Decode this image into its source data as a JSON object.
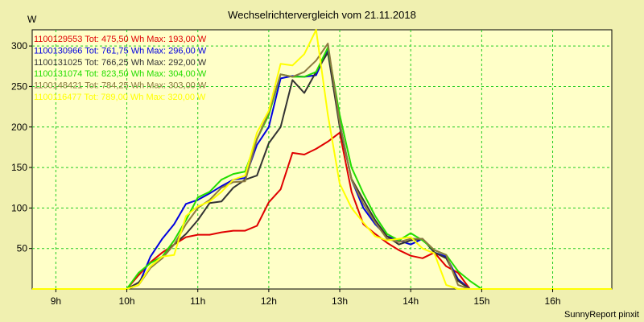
{
  "chart_data": {
    "type": "line",
    "title": "Wechselrichtervergleich vom 21.11.2018",
    "ylabel": "W",
    "xlabel": "",
    "credit": "SunnyReport pinxit",
    "xlim": [
      8.6667,
      16.8333
    ],
    "ylim": [
      0,
      320
    ],
    "xticks": [
      9,
      10,
      11,
      12,
      13,
      14,
      15,
      16
    ],
    "xtick_labels": [
      "9h",
      "10h",
      "11h",
      "12h",
      "13h",
      "14h",
      "15h",
      "16h"
    ],
    "yticks": [
      50,
      100,
      150,
      200,
      250,
      300
    ],
    "ytick_labels": [
      "50",
      "100",
      "150",
      "200",
      "250",
      "300"
    ],
    "grid": true,
    "x": [
      8.6667,
      9.0,
      9.3333,
      9.5,
      9.6667,
      9.8333,
      10.0,
      10.1667,
      10.3333,
      10.5,
      10.6667,
      10.8333,
      11.0,
      11.1667,
      11.3333,
      11.5,
      11.6667,
      11.8333,
      12.0,
      12.1667,
      12.3333,
      12.5,
      12.6667,
      12.8333,
      13.0,
      13.1667,
      13.3333,
      13.5,
      13.6667,
      13.8333,
      14.0,
      14.1667,
      14.3333,
      14.5,
      14.6667,
      14.8333,
      15.0,
      15.1667,
      15.3333,
      15.5,
      15.6667,
      15.8333,
      16.0,
      16.1667,
      16.3333,
      16.5,
      16.6667,
      16.8333
    ],
    "series": [
      {
        "name": "1100129553",
        "legend": "1100129553 Tot: 475,50 Wh Max: 193,00 W",
        "color": "#e00000",
        "values": [
          0,
          0,
          0,
          0,
          0,
          0,
          0,
          17,
          33,
          45,
          55,
          64,
          67,
          67,
          70,
          72,
          72,
          78,
          107,
          123,
          168,
          166,
          173,
          182,
          193,
          120,
          80,
          68,
          57,
          48,
          41,
          38,
          45,
          28,
          20,
          0,
          0,
          0,
          0,
          0,
          0,
          0,
          0,
          0,
          0,
          0,
          0,
          0
        ]
      },
      {
        "name": "1100130966",
        "legend": "1100130966 Tot: 761,75 Wh Max: 296,00 W",
        "color": "#0000e0",
        "values": [
          0,
          0,
          0,
          0,
          0,
          0,
          0,
          5,
          40,
          62,
          80,
          105,
          110,
          118,
          127,
          135,
          137,
          178,
          200,
          260,
          263,
          262,
          264,
          296,
          205,
          135,
          100,
          80,
          65,
          60,
          55,
          62,
          45,
          40,
          12,
          0,
          0,
          0,
          0,
          0,
          0,
          0,
          0,
          0,
          0,
          0,
          0,
          0
        ]
      },
      {
        "name": "1100131025",
        "legend": "1100131025 Tot: 766,25 Wh Max: 292,00 W",
        "color": "#333333",
        "values": [
          0,
          0,
          0,
          0,
          0,
          0,
          0,
          8,
          26,
          40,
          55,
          68,
          85,
          106,
          108,
          125,
          135,
          140,
          180,
          200,
          258,
          242,
          268,
          292,
          200,
          136,
          110,
          85,
          65,
          55,
          60,
          62,
          45,
          38,
          10,
          0,
          0,
          0,
          0,
          0,
          0,
          0,
          0,
          0,
          0,
          0,
          0,
          0
        ]
      },
      {
        "name": "1100131074",
        "legend": "1100131074 Tot: 823,50 Wh Max: 304,00 W",
        "color": "#22dd00",
        "values": [
          0,
          0,
          0,
          0,
          0,
          0,
          0,
          20,
          32,
          40,
          60,
          85,
          113,
          120,
          135,
          142,
          145,
          185,
          215,
          265,
          262,
          262,
          268,
          298,
          215,
          150,
          118,
          90,
          68,
          60,
          69,
          60,
          48,
          42,
          22,
          10,
          0,
          0,
          0,
          0,
          0,
          0,
          0,
          0,
          0,
          0,
          0,
          0
        ]
      },
      {
        "name": "1100148421",
        "legend": "1100148421 Tot: 784,25 Wh Max: 303,00 W",
        "color": "#8c7a40",
        "values": [
          0,
          0,
          0,
          0,
          0,
          0,
          0,
          5,
          26,
          38,
          55,
          80,
          100,
          110,
          125,
          132,
          133,
          185,
          218,
          265,
          262,
          268,
          282,
          303,
          205,
          135,
          105,
          82,
          62,
          58,
          62,
          62,
          48,
          42,
          5,
          0,
          0,
          0,
          0,
          0,
          0,
          0,
          0,
          0,
          0,
          0,
          0,
          0
        ]
      },
      {
        "name": "1100116477",
        "legend": "1100116477 Tot: 789,00 Wh Max: 320,00 W",
        "color": "#ffff00",
        "values": [
          0,
          0,
          0,
          0,
          0,
          0,
          0,
          5,
          28,
          40,
          42,
          90,
          102,
          108,
          120,
          135,
          140,
          193,
          220,
          278,
          276,
          290,
          320,
          215,
          130,
          100,
          82,
          65,
          60,
          62,
          64,
          50,
          44,
          5,
          0,
          0,
          0,
          0,
          0,
          0,
          0,
          0,
          0,
          0,
          0,
          0,
          0,
          0
        ]
      }
    ]
  }
}
